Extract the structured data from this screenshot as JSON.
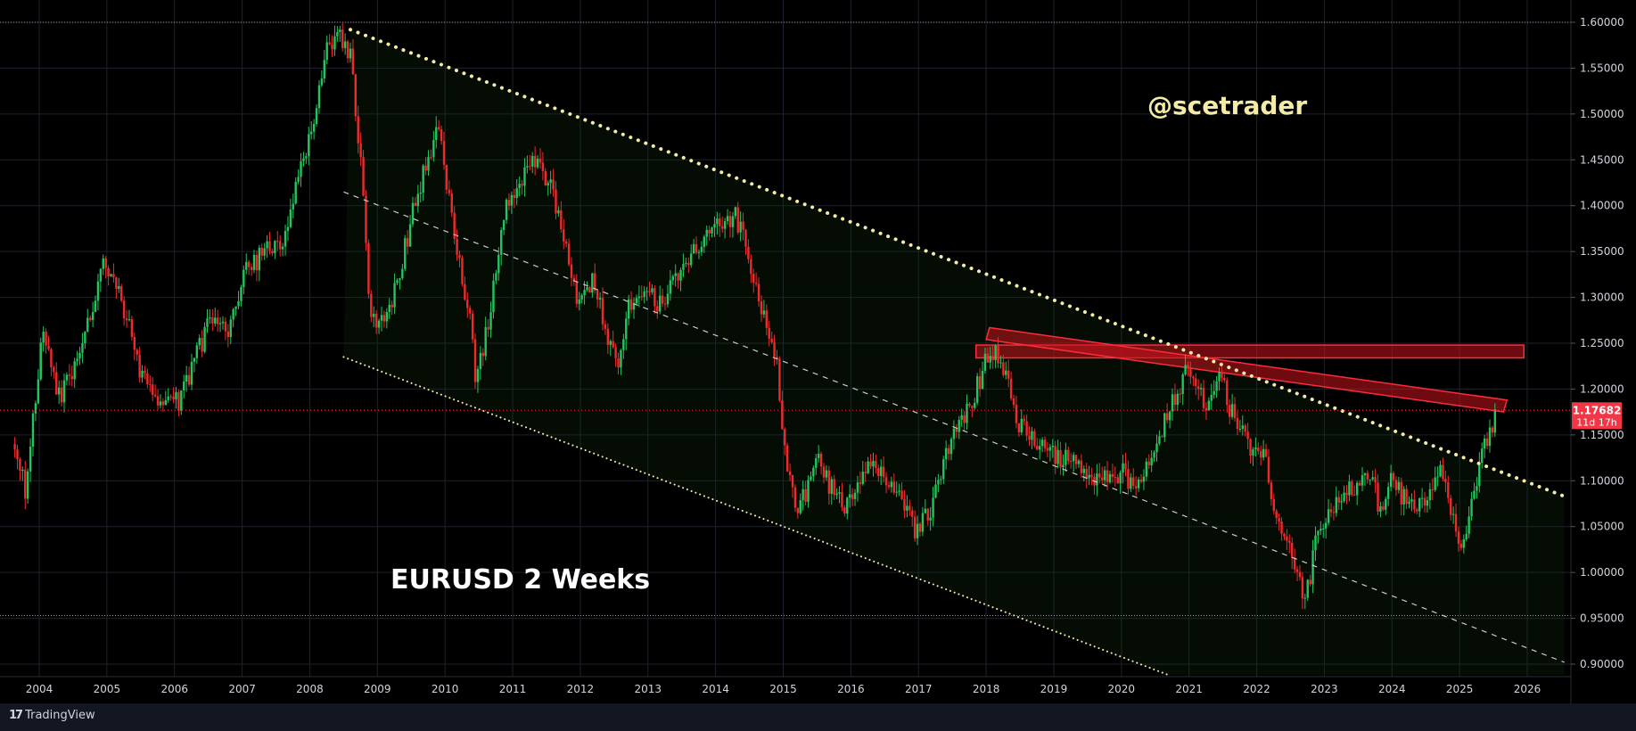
{
  "chart_data": {
    "type": "candlestick",
    "title": "EURUSD 2 Weeks",
    "watermark": "@scetrader",
    "platform": "TradingView",
    "x_ticks": [
      "2004",
      "2005",
      "2006",
      "2007",
      "2008",
      "2009",
      "2010",
      "2011",
      "2012",
      "2013",
      "2014",
      "2015",
      "2016",
      "2017",
      "2018",
      "2019",
      "2020",
      "2021",
      "2022",
      "2023",
      "2024",
      "2025",
      "2026"
    ],
    "y_ticks": [
      "1.60000",
      "1.55000",
      "1.50000",
      "1.45000",
      "1.40000",
      "1.35000",
      "1.30000",
      "1.25000",
      "1.20000",
      "1.15000",
      "1.10000",
      "1.05000",
      "1.00000",
      "0.95000",
      "0.90000"
    ],
    "ylim": [
      0.888,
      1.612
    ],
    "xlim": [
      2003.55,
      2026.6
    ],
    "last_price": "1.17682",
    "countdown": "11d 17h",
    "colors": {
      "up": "#22c55e",
      "down": "#ef2a2a",
      "price_label": "#f23645",
      "watermark": "#f4eba4"
    },
    "key_points": [
      [
        2003.6,
        1.14
      ],
      [
        2003.8,
        1.09
      ],
      [
        2004.05,
        1.26
      ],
      [
        2004.3,
        1.19
      ],
      [
        2004.6,
        1.23
      ],
      [
        2004.95,
        1.34
      ],
      [
        2005.1,
        1.31
      ],
      [
        2005.25,
        1.29
      ],
      [
        2005.5,
        1.21
      ],
      [
        2005.9,
        1.18
      ],
      [
        2006.1,
        1.19
      ],
      [
        2006.5,
        1.27
      ],
      [
        2006.8,
        1.26
      ],
      [
        2007.0,
        1.32
      ],
      [
        2007.3,
        1.35
      ],
      [
        2007.6,
        1.36
      ],
      [
        2007.95,
        1.46
      ],
      [
        2008.25,
        1.57
      ],
      [
        2008.45,
        1.58
      ],
      [
        2008.6,
        1.56
      ],
      [
        2008.75,
        1.45
      ],
      [
        2008.9,
        1.27
      ],
      [
        2009.15,
        1.28
      ],
      [
        2009.3,
        1.32
      ],
      [
        2009.55,
        1.4
      ],
      [
        2009.9,
        1.49
      ],
      [
        2010.1,
        1.38
      ],
      [
        2010.4,
        1.26
      ],
      [
        2010.45,
        1.2
      ],
      [
        2010.7,
        1.3
      ],
      [
        2010.9,
        1.4
      ],
      [
        2011.2,
        1.44
      ],
      [
        2011.4,
        1.45
      ],
      [
        2011.65,
        1.4
      ],
      [
        2011.95,
        1.29
      ],
      [
        2012.2,
        1.32
      ],
      [
        2012.55,
        1.22
      ],
      [
        2012.7,
        1.29
      ],
      [
        2012.95,
        1.31
      ],
      [
        2013.2,
        1.29
      ],
      [
        2013.6,
        1.34
      ],
      [
        2013.95,
        1.37
      ],
      [
        2014.3,
        1.39
      ],
      [
        2014.6,
        1.31
      ],
      [
        2014.9,
        1.23
      ],
      [
        2015.05,
        1.12
      ],
      [
        2015.2,
        1.06
      ],
      [
        2015.5,
        1.12
      ],
      [
        2015.9,
        1.07
      ],
      [
        2016.2,
        1.11
      ],
      [
        2016.5,
        1.11
      ],
      [
        2016.8,
        1.07
      ],
      [
        2016.95,
        1.04
      ],
      [
        2017.2,
        1.07
      ],
      [
        2017.5,
        1.15
      ],
      [
        2017.75,
        1.18
      ],
      [
        2018.0,
        1.23
      ],
      [
        2018.1,
        1.24
      ],
      [
        2018.3,
        1.22
      ],
      [
        2018.45,
        1.16
      ],
      [
        2018.9,
        1.13
      ],
      [
        2019.3,
        1.12
      ],
      [
        2019.7,
        1.1
      ],
      [
        2020.0,
        1.11
      ],
      [
        2020.25,
        1.09
      ],
      [
        2020.5,
        1.13
      ],
      [
        2020.7,
        1.18
      ],
      [
        2020.95,
        1.22
      ],
      [
        2021.1,
        1.21
      ],
      [
        2021.25,
        1.18
      ],
      [
        2021.45,
        1.22
      ],
      [
        2021.6,
        1.18
      ],
      [
        2021.9,
        1.13
      ],
      [
        2022.1,
        1.13
      ],
      [
        2022.3,
        1.05
      ],
      [
        2022.55,
        1.01
      ],
      [
        2022.72,
        0.97
      ],
      [
        2022.9,
        1.04
      ],
      [
        2023.1,
        1.07
      ],
      [
        2023.5,
        1.1
      ],
      [
        2023.7,
        1.1
      ],
      [
        2023.85,
        1.06
      ],
      [
        2024.0,
        1.1
      ],
      [
        2024.3,
        1.07
      ],
      [
        2024.5,
        1.08
      ],
      [
        2024.7,
        1.11
      ],
      [
        2024.9,
        1.06
      ],
      [
        2025.05,
        1.03
      ],
      [
        2025.2,
        1.08
      ],
      [
        2025.35,
        1.13
      ],
      [
        2025.5,
        1.16
      ],
      [
        2025.56,
        1.177
      ]
    ],
    "trendlines": [
      {
        "style": "dotted-thick",
        "color": "#f4eba4",
        "points": [
          [
            2008.6,
            1.592
          ],
          [
            2026.55,
            1.083
          ]
        ]
      },
      {
        "style": "dotted-thin",
        "color": "#f4eba4",
        "points": [
          [
            2008.5,
            1.235
          ],
          [
            2020.7,
            0.888
          ]
        ]
      },
      {
        "style": "dashed",
        "color": "#cccccc",
        "points": [
          [
            2008.5,
            1.415
          ],
          [
            2026.55,
            0.902
          ]
        ]
      }
    ],
    "channel_fill": [
      [
        2008.6,
        1.592
      ],
      [
        2026.55,
        1.083
      ],
      [
        2026.55,
        0.888
      ],
      [
        2020.7,
        0.888
      ],
      [
        2008.5,
        1.235
      ]
    ],
    "zones": [
      {
        "type": "rect",
        "x": [
          2017.85,
          2025.95
        ],
        "y": [
          1.234,
          1.248
        ]
      },
      {
        "type": "band",
        "points": [
          [
            2018.05,
            1.267
          ],
          [
            2025.7,
            1.188
          ],
          [
            2025.65,
            1.175
          ],
          [
            2018.0,
            1.254
          ]
        ]
      }
    ],
    "hlines": [
      1.6,
      0.953
    ]
  }
}
